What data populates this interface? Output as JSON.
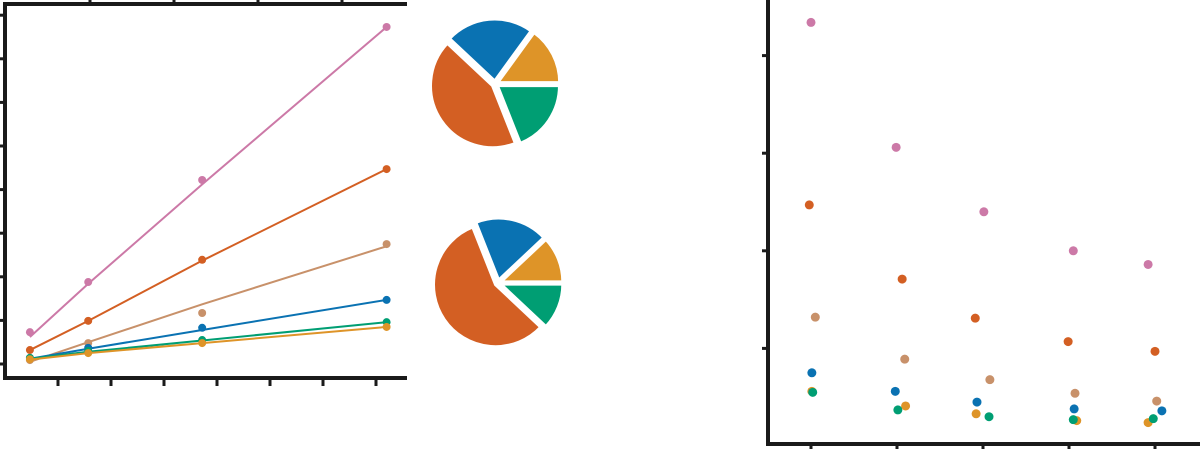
{
  "colors": {
    "pink": "#cc79a7",
    "vermillion": "#d35f23",
    "tan": "#c8916a",
    "blue": "#0a72b2",
    "green": "#009e73",
    "yellow": "#de9428",
    "axis": "#1a1a1a"
  },
  "chart_data": [
    {
      "type": "line",
      "title": "",
      "xlabel": "",
      "ylabel": "",
      "xlim": [
        0,
        7.5
      ],
      "ylim": [
        -0.3,
        8.3
      ],
      "xticks": [
        1,
        2,
        3,
        4,
        5,
        6,
        7
      ],
      "yticks": [
        0,
        1,
        2,
        3,
        4,
        5,
        6,
        7,
        8
      ],
      "secondary_xticks": [
        1,
        2,
        3,
        4
      ],
      "grid": false,
      "x": [
        0.47,
        1.57,
        3.72,
        7.2
      ],
      "series": [
        {
          "color": "#cc79a7",
          "values": [
            0.73,
            1.88,
            4.22,
            7.73
          ],
          "fit": [
            0.62,
            1.84,
            4.12,
            7.73
          ]
        },
        {
          "color": "#d35f23",
          "values": [
            0.32,
            0.99,
            2.39,
            4.47
          ],
          "fit": [
            0.32,
            0.99,
            2.37,
            4.47
          ]
        },
        {
          "color": "#c8916a",
          "values": [
            0.09,
            0.48,
            1.17,
            2.75
          ],
          "fit": [
            0.05,
            0.5,
            1.37,
            2.7
          ]
        },
        {
          "color": "#0a72b2",
          "values": [
            0.14,
            0.37,
            0.83,
            1.47
          ],
          "fit": [
            0.12,
            0.35,
            0.78,
            1.47
          ]
        },
        {
          "color": "#009e73",
          "values": [
            0.14,
            0.3,
            0.55,
            0.96
          ],
          "fit": [
            0.12,
            0.28,
            0.54,
            0.96
          ]
        },
        {
          "color": "#de9428",
          "values": [
            0.11,
            0.25,
            0.48,
            0.85
          ],
          "fit": [
            0.1,
            0.25,
            0.48,
            0.85
          ]
        }
      ]
    },
    {
      "type": "pie",
      "title": "",
      "slices": [
        {
          "color": "#009e73",
          "value": 19
        },
        {
          "color": "#d35f23",
          "value": 43
        },
        {
          "color": "#0a72b2",
          "value": 23
        },
        {
          "color": "#de9428",
          "value": 15
        }
      ]
    },
    {
      "type": "pie",
      "title": "",
      "slices": [
        {
          "color": "#009e73",
          "value": 12
        },
        {
          "color": "#d35f23",
          "value": 57
        },
        {
          "color": "#0a72b2",
          "value": 19
        },
        {
          "color": "#de9428",
          "value": 12
        }
      ]
    },
    {
      "type": "scatter",
      "title": "",
      "xlabel": "",
      "ylabel": "",
      "xlim": [
        0.5,
        5.5
      ],
      "ylim": [
        0,
        4.55
      ],
      "xticks": [
        1,
        2,
        3,
        4,
        5
      ],
      "yticks": [
        1,
        2,
        3,
        4
      ],
      "grid": false,
      "series": [
        {
          "color": "#cc79a7",
          "points": [
            [
              1.0,
              4.34
            ],
            [
              1.99,
              3.06
            ],
            [
              3.01,
              2.4
            ],
            [
              4.05,
              2.0
            ],
            [
              4.92,
              1.86
            ]
          ]
        },
        {
          "color": "#d35f23",
          "points": [
            [
              0.98,
              2.47
            ],
            [
              2.06,
              1.71
            ],
            [
              2.91,
              1.31
            ],
            [
              3.99,
              1.07
            ],
            [
              5.0,
              0.97
            ]
          ]
        },
        {
          "color": "#c8916a",
          "points": [
            [
              1.05,
              1.32
            ],
            [
              2.09,
              0.89
            ],
            [
              3.08,
              0.68
            ],
            [
              4.07,
              0.54
            ],
            [
              5.02,
              0.46
            ]
          ]
        },
        {
          "color": "#0a72b2",
          "points": [
            [
              1.01,
              0.75
            ],
            [
              1.98,
              0.56
            ],
            [
              2.93,
              0.45
            ],
            [
              4.06,
              0.38
            ],
            [
              5.08,
              0.36
            ]
          ]
        },
        {
          "color": "#de9428",
          "points": [
            [
              1.01,
              0.56
            ],
            [
              2.1,
              0.41
            ],
            [
              2.92,
              0.33
            ],
            [
              4.09,
              0.26
            ],
            [
              4.92,
              0.24
            ]
          ]
        },
        {
          "color": "#009e73",
          "points": [
            [
              1.02,
              0.55
            ],
            [
              2.01,
              0.37
            ],
            [
              3.07,
              0.3
            ],
            [
              4.05,
              0.27
            ],
            [
              4.98,
              0.28
            ]
          ]
        }
      ]
    }
  ]
}
